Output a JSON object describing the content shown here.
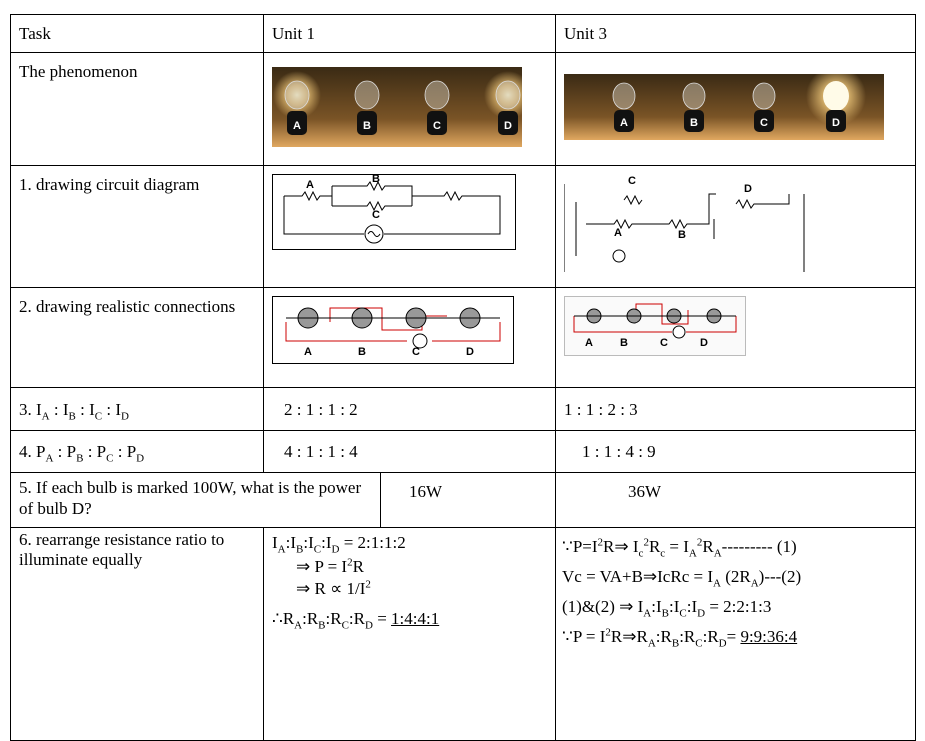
{
  "table": {
    "header": [
      "Task",
      "Unit 1",
      "Unit 3"
    ],
    "rows": [
      {
        "task": "The phenomenon",
        "unit1": [
          "A",
          "B",
          "C",
          "D"
        ],
        "unit3": [
          "A",
          "B",
          "C",
          "D"
        ]
      },
      {
        "task": "1. drawing circuit diagram",
        "unit1": [
          "A",
          "B",
          "C"
        ],
        "unit3": [
          "C",
          "D",
          "A",
          "B"
        ]
      },
      {
        "task": "2. drawing realistic connections",
        "unit1": [
          "A",
          "B",
          "C",
          "D"
        ],
        "unit3": [
          "A",
          "B",
          "C",
          "D"
        ]
      },
      {
        "task": [
          "3. I",
          "A",
          " : I",
          "B",
          " : I",
          "C",
          " : I",
          "D"
        ],
        "unit1": "2 : 1 : 1 : 2",
        "unit3": "1 : 1 : 2 : 3"
      },
      {
        "task": [
          "4. P",
          "A",
          " : P",
          "B",
          " : P",
          "C",
          " : P",
          "D"
        ],
        "unit1": "4 : 1 : 1 : 4",
        "unit3": "1 : 1 : 4 : 9"
      },
      {
        "task": "5. If each bulb is marked 100W, what is the power of bulb D?",
        "unit1": "16W",
        "unit3": "36W"
      },
      {
        "task": "6. rearrange resistance ratio to illuminate equally",
        "unit1": [
          [
            "I",
            "A",
            ":I",
            "B",
            ":I",
            "C",
            ":I",
            "D",
            " = 2:1:1:2"
          ],
          [
            "⇒ P = I",
            "2",
            "R"
          ],
          [
            "⇒ R ∝ 1/I",
            "2"
          ],
          [
            "∴R",
            "A",
            ":R",
            "B",
            ":R",
            "C",
            ":R",
            "D",
            " = ",
            "1:4:4:1"
          ]
        ],
        "unit3": [
          [
            "∵P=I",
            "2",
            "R⇒ I",
            "c",
            "2",
            "R",
            "c",
            " = I",
            "A",
            "2",
            "R",
            "A",
            "--------- (1)"
          ],
          [
            "Vc = VA+B⇒IcRc = I",
            "A",
            " (2R",
            "A",
            ")---(2)"
          ],
          [
            "(1)&(2) ⇒ I",
            "A",
            ":I",
            "B",
            ":I",
            "C",
            ":I",
            "D",
            " = 2:2:1:3"
          ],
          [
            "∵P = I",
            "2",
            "R⇒R",
            "A",
            ":R",
            "B",
            ":R",
            "C",
            ":R",
            "D",
            "= ",
            "9:9:36:4"
          ]
        ]
      }
    ]
  }
}
